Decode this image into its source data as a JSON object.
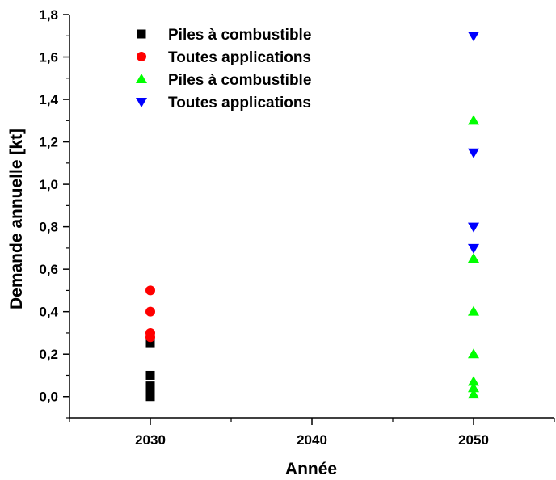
{
  "chart_data": {
    "type": "scatter",
    "xlabel": "Année",
    "ylabel": "Demande annuelle [kt]",
    "xlim": [
      2025,
      2055
    ],
    "ylim": [
      -0.1,
      1.8
    ],
    "x_ticks": [
      2030,
      2040,
      2050
    ],
    "x_tick_labels": [
      "2030",
      "2040",
      "2050"
    ],
    "y_ticks": [
      0.0,
      0.2,
      0.4,
      0.6,
      0.8,
      1.0,
      1.2,
      1.4,
      1.6,
      1.8
    ],
    "y_tick_labels": [
      "0,0",
      "0,2",
      "0,4",
      "0,6",
      "0,8",
      "1,0",
      "1,2",
      "1,4",
      "1,6",
      "1,8"
    ],
    "grid": false,
    "legend_position": "top-left",
    "series": [
      {
        "name": "Piles à combustible",
        "marker": "square",
        "color": "#000000",
        "points": [
          {
            "x": 2030,
            "y": 0.25
          },
          {
            "x": 2030,
            "y": 0.1
          },
          {
            "x": 2030,
            "y": 0.05
          },
          {
            "x": 2030,
            "y": 0.03
          },
          {
            "x": 2030,
            "y": 0.01
          },
          {
            "x": 2030,
            "y": 0.0
          }
        ]
      },
      {
        "name": "Toutes applications",
        "marker": "circle",
        "color": "#ff0000",
        "points": [
          {
            "x": 2030,
            "y": 0.5
          },
          {
            "x": 2030,
            "y": 0.4
          },
          {
            "x": 2030,
            "y": 0.3
          },
          {
            "x": 2030,
            "y": 0.28
          }
        ]
      },
      {
        "name": "Piles à combustible",
        "marker": "triangle-up",
        "color": "#00ff00",
        "points": [
          {
            "x": 2050,
            "y": 1.3
          },
          {
            "x": 2050,
            "y": 0.65
          },
          {
            "x": 2050,
            "y": 0.4
          },
          {
            "x": 2050,
            "y": 0.2
          },
          {
            "x": 2050,
            "y": 0.07
          },
          {
            "x": 2050,
            "y": 0.04
          },
          {
            "x": 2050,
            "y": 0.01
          }
        ]
      },
      {
        "name": "Toutes applications",
        "marker": "triangle-down",
        "color": "#0000ff",
        "points": [
          {
            "x": 2050,
            "y": 1.7
          },
          {
            "x": 2050,
            "y": 1.15
          },
          {
            "x": 2050,
            "y": 0.8
          },
          {
            "x": 2050,
            "y": 0.7
          }
        ]
      }
    ]
  }
}
